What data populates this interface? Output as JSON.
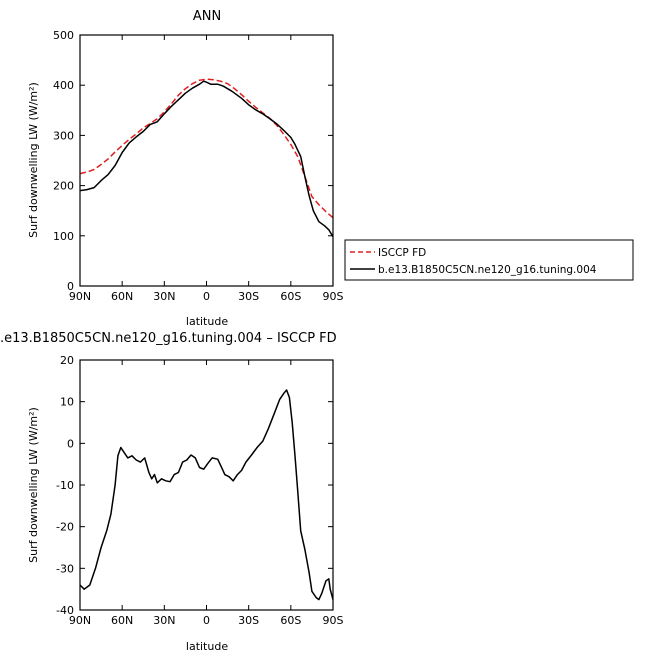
{
  "chart_data": [
    {
      "type": "line",
      "title": "ANN",
      "xlabel": "latitude",
      "ylabel": "Surf downwelling LW (W/m²)",
      "xlim": [
        90,
        -90
      ],
      "ylim": [
        0,
        500
      ],
      "x_ticks": [
        90,
        60,
        30,
        0,
        -30,
        -60,
        -90
      ],
      "x_tick_labels": [
        "90N",
        "60N",
        "30N",
        "0",
        "30S",
        "60S",
        "90S"
      ],
      "y_ticks": [
        0,
        100,
        200,
        300,
        400,
        500
      ],
      "y_tick_labels": [
        "0",
        "100",
        "200",
        "300",
        "400",
        "500"
      ],
      "legend_position": "right",
      "series": [
        {
          "name": "ISCCP FD",
          "color": "#e02020",
          "dash": "dashed",
          "points": [
            [
              90,
              224
            ],
            [
              85,
              227
            ],
            [
              80,
              232
            ],
            [
              75,
              242
            ],
            [
              70,
              253
            ],
            [
              65,
              267
            ],
            [
              60,
              280
            ],
            [
              55,
              292
            ],
            [
              50,
              303
            ],
            [
              45,
              315
            ],
            [
              40,
              324
            ],
            [
              35,
              333
            ],
            [
              30,
              347
            ],
            [
              25,
              363
            ],
            [
              20,
              380
            ],
            [
              15,
              393
            ],
            [
              10,
              403
            ],
            [
              5,
              410
            ],
            [
              0,
              412
            ],
            [
              -5,
              411
            ],
            [
              -10,
              408
            ],
            [
              -15,
              403
            ],
            [
              -20,
              393
            ],
            [
              -25,
              381
            ],
            [
              -30,
              368
            ],
            [
              -35,
              356
            ],
            [
              -40,
              345
            ],
            [
              -45,
              334
            ],
            [
              -50,
              320
            ],
            [
              -55,
              302
            ],
            [
              -60,
              282
            ],
            [
              -65,
              257
            ],
            [
              -70,
              218
            ],
            [
              -75,
              178
            ],
            [
              -80,
              162
            ],
            [
              -85,
              148
            ],
            [
              -90,
              136
            ]
          ]
        },
        {
          "name": "b.e13.B1850C5CN.ne120_g16.tuning.004",
          "color": "#000000",
          "dash": "solid",
          "points": [
            [
              90,
              190
            ],
            [
              85,
              192
            ],
            [
              80,
              196
            ],
            [
              75,
              210
            ],
            [
              70,
              222
            ],
            [
              65,
              240
            ],
            [
              60,
              266
            ],
            [
              55,
              285
            ],
            [
              50,
              297
            ],
            [
              45,
              308
            ],
            [
              40,
              322
            ],
            [
              35,
              327
            ],
            [
              30,
              343
            ],
            [
              25,
              358
            ],
            [
              20,
              371
            ],
            [
              15,
              384
            ],
            [
              10,
              394
            ],
            [
              5,
              402
            ],
            [
              2,
              408
            ],
            [
              0,
              406
            ],
            [
              -3,
              402
            ],
            [
              -8,
              402
            ],
            [
              -12,
              398
            ],
            [
              -18,
              388
            ],
            [
              -25,
              374
            ],
            [
              -30,
              361
            ],
            [
              -35,
              351
            ],
            [
              -40,
              343
            ],
            [
              -45,
              333
            ],
            [
              -50,
              323
            ],
            [
              -55,
              310
            ],
            [
              -60,
              296
            ],
            [
              -63,
              282
            ],
            [
              -67,
              258
            ],
            [
              -70,
              218
            ],
            [
              -73,
              180
            ],
            [
              -76,
              150
            ],
            [
              -80,
              128
            ],
            [
              -84,
              120
            ],
            [
              -87,
              112
            ],
            [
              -90,
              98
            ]
          ]
        }
      ]
    },
    {
      "type": "line",
      "title": ".e13.B1850C5CN.ne120_g16.tuning.004 – ISCCP FD",
      "xlabel": "latitude",
      "ylabel": "Surf downwelling LW (W/m²)",
      "xlim": [
        90,
        -90
      ],
      "ylim": [
        -40,
        20
      ],
      "x_ticks": [
        90,
        60,
        30,
        0,
        -30,
        -60,
        -90
      ],
      "x_tick_labels": [
        "90N",
        "60N",
        "30N",
        "0",
        "30S",
        "60S",
        "90S"
      ],
      "y_ticks": [
        -40,
        -30,
        -20,
        -10,
        0,
        10,
        20
      ],
      "y_tick_labels": [
        "-40",
        "-30",
        "-20",
        "-10",
        "0",
        "10",
        "20"
      ],
      "series": [
        {
          "color": "#000000",
          "dash": "solid",
          "points": [
            [
              90,
              -34
            ],
            [
              87,
              -35
            ],
            [
              83,
              -34
            ],
            [
              79,
              -30
            ],
            [
              75,
              -25
            ],
            [
              71,
              -21
            ],
            [
              68,
              -17
            ],
            [
              65,
              -10
            ],
            [
              63,
              -3
            ],
            [
              61,
              -1
            ],
            [
              59,
              -2
            ],
            [
              56,
              -3.5
            ],
            [
              53,
              -3
            ],
            [
              50,
              -4
            ],
            [
              47,
              -4.5
            ],
            [
              44,
              -3.5
            ],
            [
              41,
              -7
            ],
            [
              39,
              -8.5
            ],
            [
              37,
              -7.5
            ],
            [
              35,
              -9.5
            ],
            [
              32,
              -8.5
            ],
            [
              29,
              -9
            ],
            [
              26,
              -9.2
            ],
            [
              23,
              -7.5
            ],
            [
              20,
              -7
            ],
            [
              17,
              -4.5
            ],
            [
              14,
              -4
            ],
            [
              11,
              -2.8
            ],
            [
              8,
              -3.5
            ],
            [
              5,
              -5.8
            ],
            [
              2,
              -6.2
            ],
            [
              -1,
              -4.8
            ],
            [
              -4,
              -3.5
            ],
            [
              -8,
              -3.8
            ],
            [
              -11,
              -6
            ],
            [
              -13,
              -7.5
            ],
            [
              -16,
              -8
            ],
            [
              -19,
              -9
            ],
            [
              -22,
              -7.5
            ],
            [
              -25,
              -6.5
            ],
            [
              -28,
              -4.5
            ],
            [
              -32,
              -2.8
            ],
            [
              -36,
              -1
            ],
            [
              -40,
              0.5
            ],
            [
              -44,
              3.5
            ],
            [
              -48,
              7
            ],
            [
              -52,
              10.5
            ],
            [
              -55,
              12
            ],
            [
              -57,
              12.8
            ],
            [
              -59,
              11
            ],
            [
              -61,
              5
            ],
            [
              -63,
              -3
            ],
            [
              -65,
              -12
            ],
            [
              -67,
              -21
            ],
            [
              -70,
              -25.5
            ],
            [
              -73,
              -31
            ],
            [
              -75,
              -35.5
            ],
            [
              -78,
              -37
            ],
            [
              -80,
              -37.5
            ],
            [
              -82,
              -36
            ],
            [
              -85,
              -33
            ],
            [
              -87,
              -32.5
            ],
            [
              -88,
              -35
            ],
            [
              -90,
              -37.5
            ]
          ]
        }
      ]
    }
  ]
}
